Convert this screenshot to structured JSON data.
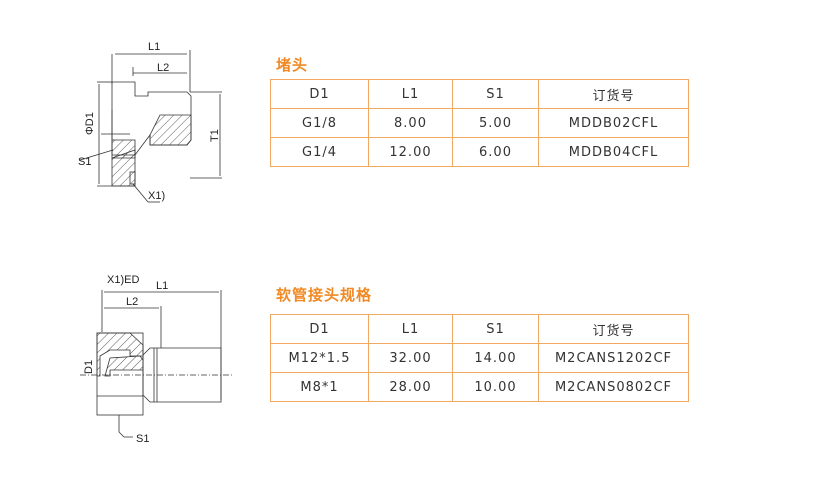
{
  "sections": [
    {
      "title": "堵头",
      "headers": [
        "D1",
        "L1",
        "S1",
        "订货号"
      ],
      "rows": [
        [
          "G1/8",
          "8.00",
          "5.00",
          "MDDB02CFL"
        ],
        [
          "G1/4",
          "12.00",
          "6.00",
          "MDDB04CFL"
        ]
      ]
    },
    {
      "title": "软管接头规格",
      "headers": [
        "D1",
        "L1",
        "S1",
        "订货号"
      ],
      "rows": [
        [
          "M12*1.5",
          "32.00",
          "14.00",
          "M2CANS1202CF"
        ],
        [
          "M8*1",
          "28.00",
          "10.00",
          "M2CANS0802CF"
        ]
      ]
    }
  ],
  "drawing1": {
    "labels": [
      "L1",
      "L2",
      "ΦD1",
      "T1",
      "S1",
      "X1)"
    ]
  },
  "drawing2": {
    "labels": [
      "X1)ED",
      "L1",
      "L2",
      "D1",
      "S1"
    ]
  },
  "colors": {
    "accent": "#f08a24",
    "table_border": "#f2a860"
  }
}
